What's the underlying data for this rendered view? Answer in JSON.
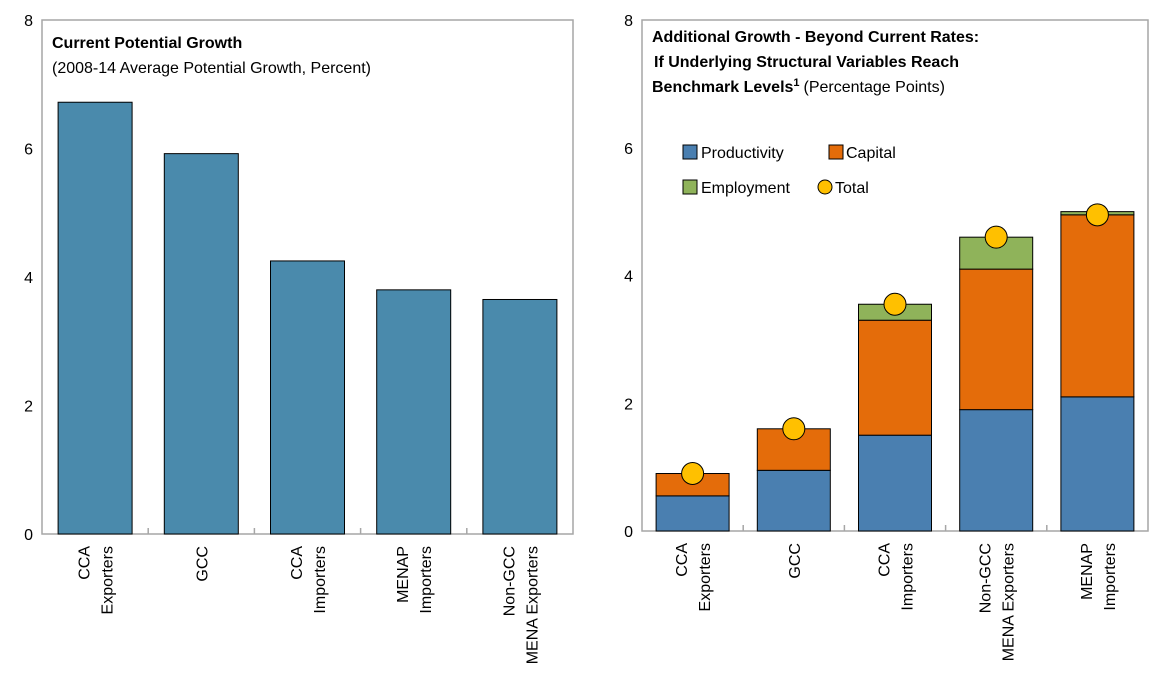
{
  "chart_data": [
    {
      "type": "bar",
      "title": "Current Potential Growth",
      "subtitle": "(2008-14 Average Potential Growth, Percent)",
      "categories": [
        [
          "CCA",
          "Exporters"
        ],
        [
          "GCC"
        ],
        [
          "CCA",
          "Importers"
        ],
        [
          "MENAP",
          "Importers"
        ],
        [
          "Non-GCC",
          "MENA Exporters"
        ]
      ],
      "values": [
        6.72,
        5.92,
        4.25,
        3.8,
        3.65
      ],
      "ylim": [
        0,
        8
      ],
      "yticks": [
        "0",
        "2",
        "4",
        "6",
        "8"
      ],
      "grid": false,
      "colors": {
        "bar": "#4a8aac"
      }
    },
    {
      "type": "bar",
      "stacked": true,
      "title_lines": [
        "Additional Growth - Beyond Current Rates:",
        "If Underlying Structural Variables Reach",
        "Benchmark Levels"
      ],
      "title_superscript": "1",
      "subtitle": "(Percentage Points)",
      "categories": [
        [
          "CCA",
          "Exporters"
        ],
        [
          "GCC"
        ],
        [
          "CCA",
          "Importers"
        ],
        [
          "Non-GCC",
          "MENA Exporters"
        ],
        [
          "MENAP",
          "Importers"
        ]
      ],
      "series": [
        {
          "name": "Productivity",
          "color": "#4a7fb0",
          "values": [
            0.55,
            0.95,
            1.5,
            1.9,
            2.1
          ]
        },
        {
          "name": "Capital",
          "color": "#e46c0a",
          "values": [
            0.35,
            0.65,
            1.8,
            2.2,
            2.85
          ]
        },
        {
          "name": "Employment",
          "color": "#8fb35a",
          "values": [
            0.0,
            0.0,
            0.25,
            0.5,
            0.05
          ]
        }
      ],
      "total": {
        "name": "Total",
        "color": "#ffc000",
        "values": [
          0.9,
          1.6,
          3.55,
          4.6,
          4.95
        ]
      },
      "legend_position": "top-left",
      "ylim": [
        0,
        8
      ],
      "yticks": [
        "0",
        "2",
        "4",
        "6",
        "8"
      ],
      "grid": false
    }
  ]
}
